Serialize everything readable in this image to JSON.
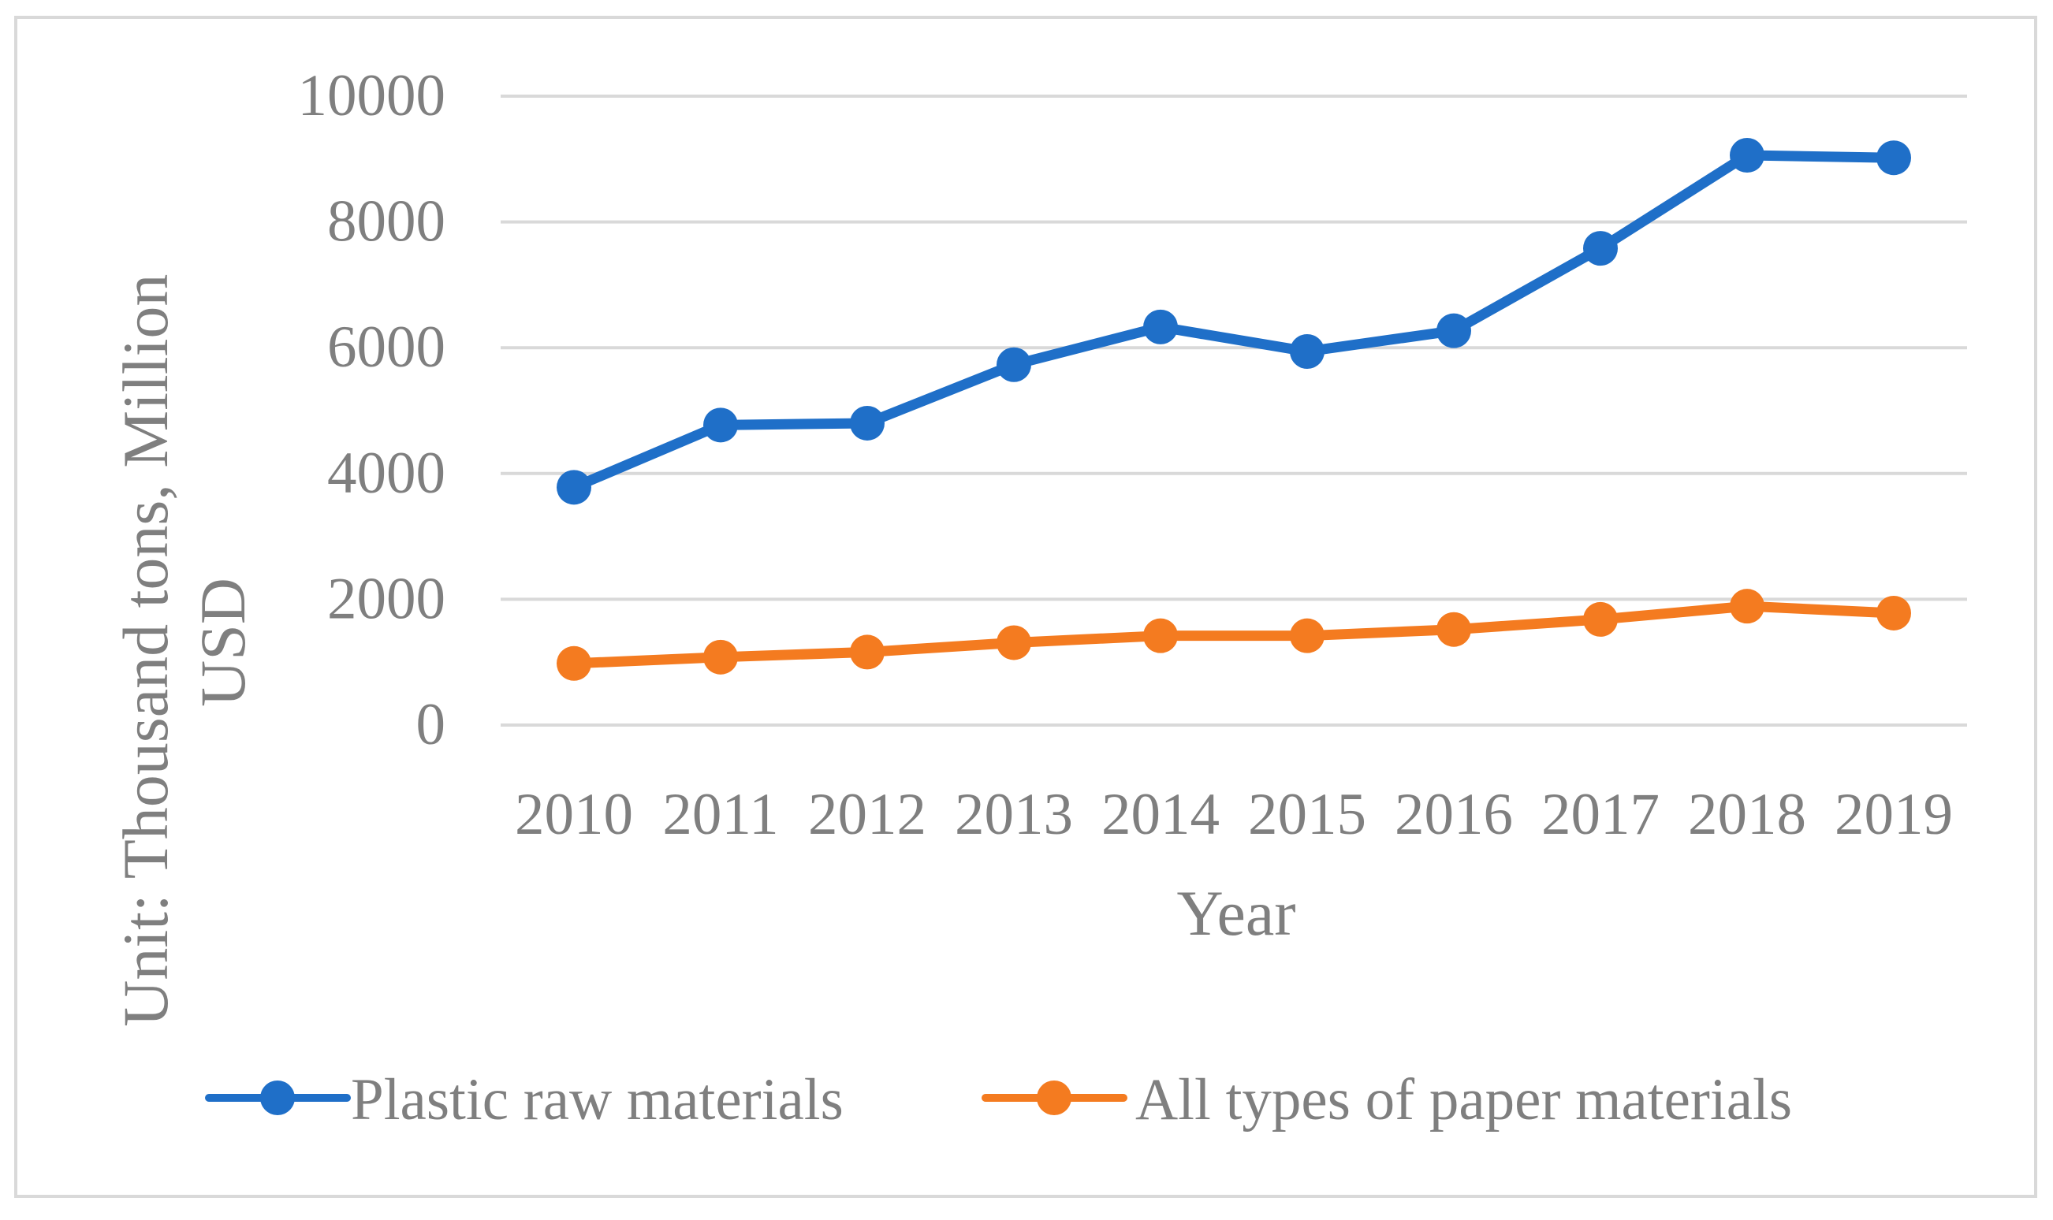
{
  "chart_data": {
    "type": "line",
    "title": "",
    "xlabel": "Year",
    "ylabel_lines": [
      "Unit: Thousand tons, Million",
      "USD"
    ],
    "categories": [
      "2010",
      "2011",
      "2012",
      "2013",
      "2014",
      "2015",
      "2016",
      "2017",
      "2018",
      "2019"
    ],
    "ylim": [
      0,
      10000
    ],
    "yticks": [
      "0",
      "2000",
      "4000",
      "6000",
      "8000",
      "10000"
    ],
    "grid": true,
    "legend_position": "bottom",
    "series": [
      {
        "name": "Plastic raw materials",
        "color": "#1f6fc8",
        "values": [
          3780,
          4770,
          4800,
          5730,
          6330,
          5940,
          6270,
          7580,
          9060,
          9020
        ]
      },
      {
        "name": "All types of paper materials",
        "color": "#f47b20",
        "values": [
          980,
          1080,
          1160,
          1310,
          1420,
          1420,
          1520,
          1680,
          1890,
          1780
        ]
      }
    ]
  }
}
